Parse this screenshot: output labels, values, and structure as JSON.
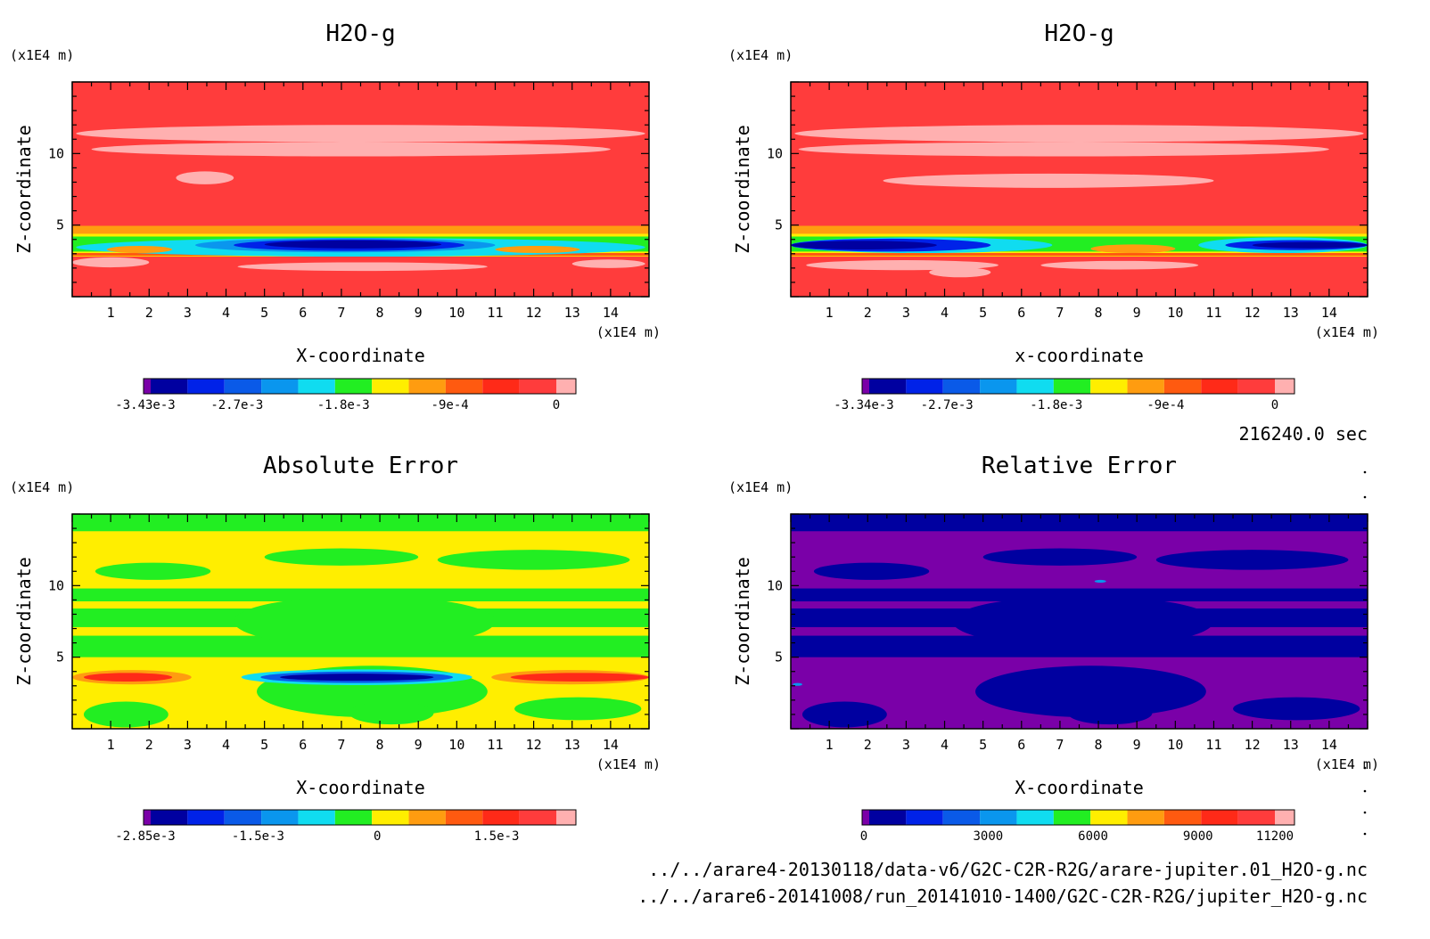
{
  "colors": {
    "purple": "#7a00a8",
    "navy": "#0000a0",
    "blue": "#0022e8",
    "midblue": "#0a5ae8",
    "azure": "#0a96ee",
    "cyan": "#10dcf0",
    "green": "#22ee22",
    "yellow": "#ffee00",
    "orange": "#ff9c10",
    "redorange": "#ff5a10",
    "red": "#ff2a18",
    "lightred": "#ff3c3c",
    "pink": "#ffb0b0"
  },
  "time_label": "216240.0 sec",
  "file_paths": [
    "../../arare4-20130118/data-v6/G2C-C2R-R2G/arare-jupiter.01_H2O-g.nc",
    "../../arare6-20141008/run_20141010-1400/G2C-C2R-R2G/jupiter_H2O-g.nc"
  ],
  "chart_data": [
    {
      "type": "heatmap",
      "title": "H2O-g",
      "xlabel": "X-coordinate",
      "ylabel": "Z-coordinate",
      "x_unit": "(x1E4 m)",
      "y_unit": "(x1E4 m)",
      "xlim": [
        0,
        15
      ],
      "ylim": [
        0,
        15
      ],
      "x_ticks": [
        "1",
        "2",
        "3",
        "4",
        "5",
        "6",
        "7",
        "8",
        "9",
        "10",
        "11",
        "12",
        "13",
        "14"
      ],
      "y_ticks": [
        "5",
        "10"
      ],
      "colorbar": {
        "levels": 12,
        "colors": [
          "purple",
          "navy",
          "blue",
          "midblue",
          "azure",
          "cyan",
          "green",
          "yellow",
          "orange",
          "redorange",
          "red",
          "lightred",
          "pink"
        ],
        "labels": [
          "-3.43e-3",
          "-2.7e-3",
          "-1.8e-3",
          "-9e-4",
          "0"
        ],
        "label_values": [
          -0.00343,
          -0.0027,
          -0.0018,
          -0.0009,
          0
        ],
        "range": [
          -0.00343,
          0
        ]
      },
      "background": "lightred",
      "bands": [
        {
          "z": [
            4.4,
            4.95
          ],
          "color": "orange"
        },
        {
          "z": [
            2.8,
            4.4
          ],
          "color": "yellow"
        },
        {
          "z": [
            3.15,
            4.2
          ],
          "color": "green"
        },
        {
          "z": [
            2.85,
            3.05
          ],
          "color": "redorange"
        }
      ],
      "blobs": [
        {
          "x": 0.1,
          "x2": 14.9,
          "z": 3.45,
          "h": 0.65,
          "color": "cyan"
        },
        {
          "x": 3.2,
          "x2": 11.0,
          "z": 3.6,
          "h": 0.5,
          "color": "azure"
        },
        {
          "x": 4.2,
          "x2": 10.2,
          "z": 3.6,
          "h": 0.4,
          "color": "blue"
        },
        {
          "x": 5.0,
          "x2": 9.6,
          "z": 3.65,
          "h": 0.28,
          "color": "navy"
        },
        {
          "x": 0.9,
          "x2": 2.6,
          "z": 3.3,
          "h": 0.25,
          "color": "orange"
        },
        {
          "x": 11.0,
          "x2": 13.2,
          "z": 3.3,
          "h": 0.25,
          "color": "orange"
        },
        {
          "x": 0.1,
          "x2": 14.9,
          "z": 11.4,
          "h": 0.6,
          "color": "pink"
        },
        {
          "x": 0.5,
          "x2": 14.0,
          "z": 10.3,
          "h": 0.5,
          "color": "pink"
        },
        {
          "x": 2.7,
          "x2": 4.2,
          "z": 8.3,
          "h": 0.45,
          "color": "pink"
        },
        {
          "x": 0.0,
          "x2": 2.0,
          "z": 2.4,
          "h": 0.35,
          "color": "pink"
        },
        {
          "x": 4.3,
          "x2": 10.8,
          "z": 2.1,
          "h": 0.3,
          "color": "pink"
        },
        {
          "x": 13.0,
          "x2": 14.9,
          "z": 2.3,
          "h": 0.3,
          "color": "pink"
        }
      ]
    },
    {
      "type": "heatmap",
      "title": "H2O-g",
      "xlabel": "x-coordinate",
      "ylabel": "Z-coordinate",
      "x_unit": "(x1E4 m)",
      "y_unit": "(x1E4 m)",
      "xlim": [
        0,
        15
      ],
      "ylim": [
        0,
        15
      ],
      "x_ticks": [
        "1",
        "2",
        "3",
        "4",
        "5",
        "6",
        "7",
        "8",
        "9",
        "10",
        "11",
        "12",
        "13",
        "14"
      ],
      "y_ticks": [
        "5",
        "10"
      ],
      "colorbar": {
        "levels": 12,
        "colors": [
          "purple",
          "navy",
          "blue",
          "midblue",
          "azure",
          "cyan",
          "green",
          "yellow",
          "orange",
          "redorange",
          "red",
          "lightred",
          "pink"
        ],
        "labels": [
          "-3.34e-3",
          "-2.7e-3",
          "-1.8e-3",
          "-9e-4",
          "0"
        ],
        "label_values": [
          -0.00334,
          -0.0027,
          -0.0018,
          -0.0009,
          0
        ],
        "range": [
          -0.00334,
          0
        ]
      },
      "background": "lightred",
      "bands": [
        {
          "z": [
            4.4,
            4.95
          ],
          "color": "orange"
        },
        {
          "z": [
            2.8,
            4.4
          ],
          "color": "yellow"
        },
        {
          "z": [
            3.15,
            4.2
          ],
          "color": "green"
        },
        {
          "z": [
            2.85,
            3.05
          ],
          "color": "redorange"
        }
      ],
      "blobs": [
        {
          "x": 0.0,
          "x2": 6.8,
          "z": 3.6,
          "h": 0.55,
          "color": "cyan"
        },
        {
          "x": 0.0,
          "x2": 5.2,
          "z": 3.6,
          "h": 0.45,
          "color": "blue"
        },
        {
          "x": 0.0,
          "x2": 3.8,
          "z": 3.6,
          "h": 0.3,
          "color": "navy"
        },
        {
          "x": 10.6,
          "x2": 15.0,
          "z": 3.6,
          "h": 0.55,
          "color": "cyan"
        },
        {
          "x": 11.3,
          "x2": 15.0,
          "z": 3.6,
          "h": 0.35,
          "color": "blue"
        },
        {
          "x": 12.0,
          "x2": 15.0,
          "z": 3.6,
          "h": 0.22,
          "color": "navy"
        },
        {
          "x": 7.8,
          "x2": 10.0,
          "z": 3.35,
          "h": 0.3,
          "color": "orange"
        },
        {
          "x": 0.1,
          "x2": 14.9,
          "z": 11.4,
          "h": 0.6,
          "color": "pink"
        },
        {
          "x": 0.2,
          "x2": 14.0,
          "z": 10.3,
          "h": 0.5,
          "color": "pink"
        },
        {
          "x": 2.4,
          "x2": 11.0,
          "z": 8.1,
          "h": 0.5,
          "color": "pink"
        },
        {
          "x": 0.4,
          "x2": 5.4,
          "z": 2.2,
          "h": 0.35,
          "color": "pink"
        },
        {
          "x": 6.5,
          "x2": 10.6,
          "z": 2.2,
          "h": 0.3,
          "color": "pink"
        },
        {
          "x": 3.6,
          "x2": 5.2,
          "z": 1.7,
          "h": 0.35,
          "color": "pink"
        }
      ]
    },
    {
      "type": "heatmap",
      "title": "Absolute Error",
      "xlabel": "X-coordinate",
      "ylabel": "Z-coordinate",
      "x_unit": "(x1E4 m)",
      "y_unit": "(x1E4 m)",
      "xlim": [
        0,
        15
      ],
      "ylim": [
        0,
        15
      ],
      "x_ticks": [
        "1",
        "2",
        "3",
        "4",
        "5",
        "6",
        "7",
        "8",
        "9",
        "10",
        "11",
        "12",
        "13",
        "14"
      ],
      "y_ticks": [
        "5",
        "10"
      ],
      "colorbar": {
        "levels": 12,
        "colors": [
          "purple",
          "navy",
          "blue",
          "midblue",
          "azure",
          "cyan",
          "green",
          "yellow",
          "orange",
          "redorange",
          "red",
          "lightred",
          "pink"
        ],
        "labels": [
          "-2.85e-3",
          "-1.5e-3",
          "0",
          "1.5e-3"
        ],
        "label_values": [
          -0.00285,
          -0.0015,
          0,
          0.0015
        ],
        "range": [
          -0.00285,
          0.00225
        ]
      },
      "background": "yellow",
      "bands": [
        {
          "z": [
            13.8,
            15.0
          ],
          "color": "green"
        },
        {
          "z": [
            8.9,
            9.8
          ],
          "color": "green"
        },
        {
          "z": [
            7.1,
            8.4
          ],
          "color": "green"
        },
        {
          "z": [
            5.0,
            6.5
          ],
          "color": "green"
        }
      ],
      "blobs": [
        {
          "x": 4.2,
          "x2": 11.0,
          "z": 7.5,
          "h": 1.8,
          "color": "green"
        },
        {
          "x": 4.8,
          "x2": 10.8,
          "z": 2.6,
          "h": 1.8,
          "color": "green"
        },
        {
          "x": 0.6,
          "x2": 3.6,
          "z": 11.0,
          "h": 0.6,
          "color": "green"
        },
        {
          "x": 5.0,
          "x2": 9.0,
          "z": 12.0,
          "h": 0.6,
          "color": "green"
        },
        {
          "x": 9.5,
          "x2": 14.5,
          "z": 11.8,
          "h": 0.7,
          "color": "green"
        },
        {
          "x": 0.3,
          "x2": 2.5,
          "z": 1.0,
          "h": 0.9,
          "color": "green"
        },
        {
          "x": 7.2,
          "x2": 9.4,
          "z": 1.1,
          "h": 0.8,
          "color": "green"
        },
        {
          "x": 11.5,
          "x2": 14.8,
          "z": 1.4,
          "h": 0.8,
          "color": "green"
        },
        {
          "x": 0.0,
          "x2": 3.1,
          "z": 3.6,
          "h": 0.5,
          "color": "orange"
        },
        {
          "x": 0.3,
          "x2": 2.6,
          "z": 3.6,
          "h": 0.3,
          "color": "red"
        },
        {
          "x": 10.9,
          "x2": 15.0,
          "z": 3.6,
          "h": 0.5,
          "color": "orange"
        },
        {
          "x": 11.4,
          "x2": 15.0,
          "z": 3.6,
          "h": 0.3,
          "color": "red"
        },
        {
          "x": 4.4,
          "x2": 10.4,
          "z": 3.6,
          "h": 0.55,
          "color": "cyan"
        },
        {
          "x": 4.9,
          "x2": 9.9,
          "z": 3.6,
          "h": 0.4,
          "color": "midblue"
        },
        {
          "x": 5.4,
          "x2": 9.4,
          "z": 3.6,
          "h": 0.25,
          "color": "navy"
        }
      ]
    },
    {
      "type": "heatmap",
      "title": "Relative Error",
      "xlabel": "X-coordinate",
      "ylabel": "Z-coordinate",
      "x_unit": "(x1E4 m)",
      "y_unit": "(x1E4 m)",
      "xlim": [
        0,
        15
      ],
      "ylim": [
        0,
        15
      ],
      "x_ticks": [
        "1",
        "2",
        "3",
        "4",
        "5",
        "6",
        "7",
        "8",
        "9",
        "10",
        "11",
        "12",
        "13",
        "14"
      ],
      "y_ticks": [
        "5",
        "10"
      ],
      "colorbar": {
        "levels": 12,
        "colors": [
          "purple",
          "navy",
          "blue",
          "midblue",
          "azure",
          "cyan",
          "green",
          "yellow",
          "orange",
          "redorange",
          "red",
          "lightred",
          "pink"
        ],
        "labels": [
          "0",
          "3000",
          "6000",
          "9000",
          "11200"
        ],
        "label_values": [
          0,
          3000,
          6000,
          9000,
          11200
        ],
        "range": [
          -400,
          11200
        ]
      },
      "background": "purple",
      "bands": [
        {
          "z": [
            13.8,
            15.0
          ],
          "color": "navy"
        },
        {
          "z": [
            8.9,
            9.8
          ],
          "color": "navy"
        },
        {
          "z": [
            7.1,
            8.4
          ],
          "color": "navy"
        },
        {
          "z": [
            5.0,
            6.5
          ],
          "color": "navy"
        }
      ],
      "blobs": [
        {
          "x": 4.2,
          "x2": 11.0,
          "z": 7.5,
          "h": 1.8,
          "color": "navy"
        },
        {
          "x": 4.8,
          "x2": 10.8,
          "z": 2.6,
          "h": 1.8,
          "color": "navy"
        },
        {
          "x": 0.6,
          "x2": 3.6,
          "z": 11.0,
          "h": 0.6,
          "color": "navy"
        },
        {
          "x": 5.0,
          "x2": 9.0,
          "z": 12.0,
          "h": 0.6,
          "color": "navy"
        },
        {
          "x": 9.5,
          "x2": 14.5,
          "z": 11.8,
          "h": 0.7,
          "color": "navy"
        },
        {
          "x": 0.3,
          "x2": 2.5,
          "z": 1.0,
          "h": 0.9,
          "color": "navy"
        },
        {
          "x": 7.2,
          "x2": 9.4,
          "z": 1.1,
          "h": 0.8,
          "color": "navy"
        },
        {
          "x": 11.5,
          "x2": 14.8,
          "z": 1.4,
          "h": 0.8,
          "color": "navy"
        },
        {
          "x": 7.9,
          "x2": 8.2,
          "z": 10.3,
          "h": 0.1,
          "color": "azure"
        },
        {
          "x": 0.05,
          "x2": 0.3,
          "z": 3.1,
          "h": 0.1,
          "color": "azure"
        }
      ]
    }
  ]
}
